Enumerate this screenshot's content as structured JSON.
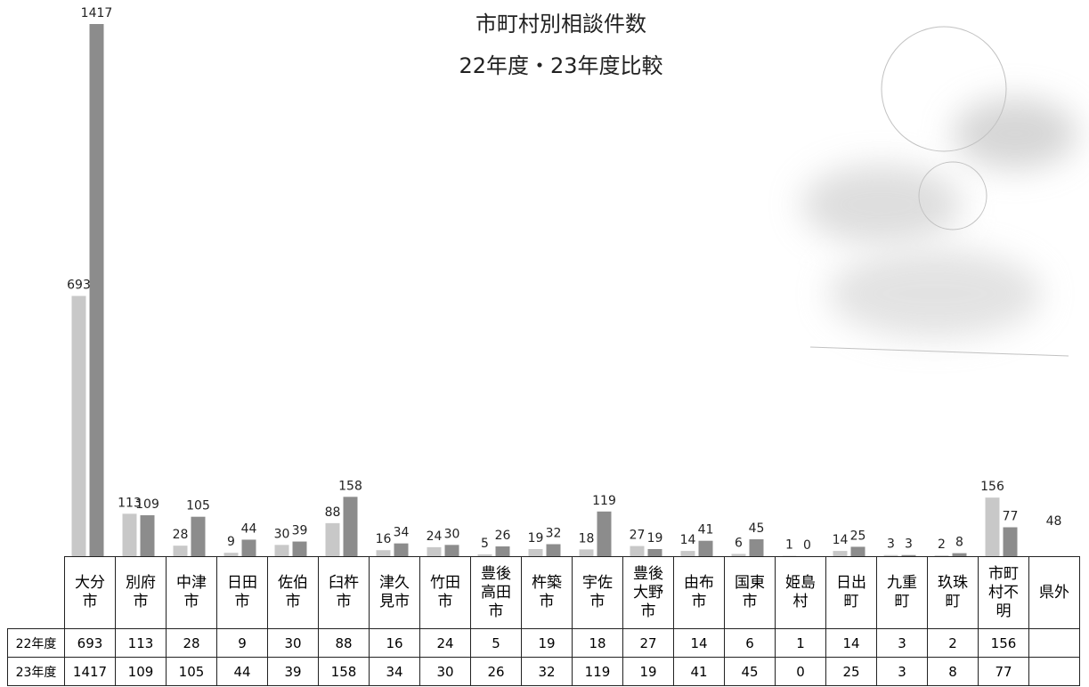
{
  "chart_data": {
    "type": "bar",
    "title": "市町村別相談件数",
    "subtitle": "22年度・23年度比較",
    "categories": [
      "大分市",
      "別府市",
      "中津市",
      "日田市",
      "佐伯市",
      "臼杵市",
      "津久見市",
      "竹田市",
      "豊後高田市",
      "杵築市",
      "宇佐市",
      "豊後大野市",
      "由布市",
      "国東市",
      "姫島村",
      "日出町",
      "九重町",
      "玖珠町",
      "市町村不明",
      "県外"
    ],
    "series": [
      {
        "name": "22年度",
        "color": "#c8c8c8",
        "values": [
          693,
          113,
          28,
          9,
          30,
          88,
          16,
          24,
          5,
          19,
          18,
          27,
          14,
          6,
          1,
          14,
          3,
          2,
          156,
          null
        ]
      },
      {
        "name": "23年度",
        "color": "#8c8c8c",
        "values": [
          1417,
          109,
          105,
          44,
          39,
          158,
          34,
          30,
          26,
          32,
          119,
          19,
          41,
          45,
          0,
          25,
          3,
          8,
          77,
          null
        ]
      }
    ],
    "outside_total": 48
  }
}
